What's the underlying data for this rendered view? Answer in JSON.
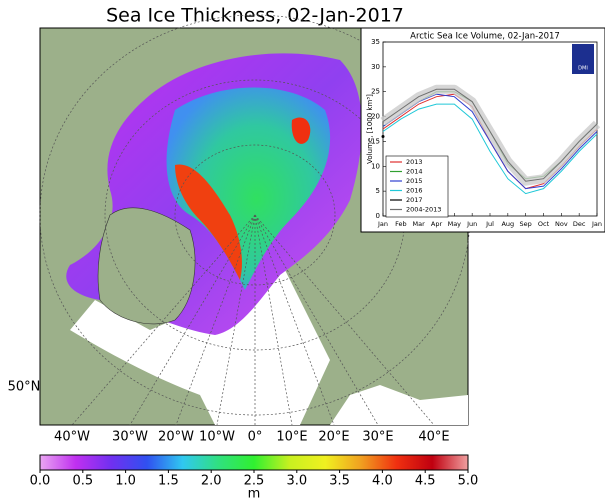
{
  "title": "Sea Ice Thickness, 02-Jan-2017",
  "map": {
    "lon_labels": [
      "40°W",
      "30°W",
      "20°W",
      "10°W",
      "0°",
      "10°E",
      "20°E",
      "30°E",
      "40°E"
    ],
    "lat_label": "50°N"
  },
  "colorbar": {
    "lim": [
      0,
      5
    ],
    "ticks": [
      {
        "value": 0,
        "label": "0.0"
      },
      {
        "value": 0.5,
        "label": "0.5"
      },
      {
        "value": 1,
        "label": "1.0"
      },
      {
        "value": 1.5,
        "label": "1.5"
      },
      {
        "value": 2,
        "label": "2.0"
      },
      {
        "value": 2.5,
        "label": "2.5"
      },
      {
        "value": 3,
        "label": "3.0"
      },
      {
        "value": 3.5,
        "label": "3.5"
      },
      {
        "value": 4,
        "label": "4.0"
      },
      {
        "value": 4.5,
        "label": "4.5"
      },
      {
        "value": 5,
        "label": "5.0"
      }
    ],
    "colors": [
      "#eaa6f2",
      "#c030f0",
      "#7030f0",
      "#3050f0",
      "#30c8f0",
      "#30e080",
      "#30f030",
      "#c8f020",
      "#f0f020",
      "#f0a020",
      "#f03010",
      "#c00010",
      "#f0a0a0"
    ],
    "unit": "m"
  },
  "chart_data": {
    "type": "line",
    "title": "Arctic Sea Ice Volume, 02-Jan-2017",
    "ylabel": "Volume, [1000 km³]",
    "logo_text": "DMI",
    "categories": [
      "Jan",
      "Feb",
      "Mar",
      "Apr",
      "May",
      "Jun",
      "Jul",
      "Aug",
      "Sep",
      "Oct",
      "Nov",
      "Dec",
      "Jan"
    ],
    "ylim": [
      0,
      35
    ],
    "yticks": [
      0,
      5,
      10,
      15,
      20,
      25,
      30,
      35
    ],
    "series": [
      {
        "name": "2013",
        "color": "#e03030",
        "values": [
          17.5,
          20,
          22.5,
          24,
          24.5,
          22,
          15,
          9,
          5.5,
          6.5,
          10,
          14,
          17.5
        ]
      },
      {
        "name": "2014",
        "color": "#30a030",
        "values": [
          18,
          20.5,
          23,
          25,
          25,
          23,
          17,
          10.5,
          7.5,
          8,
          11,
          15,
          18.5
        ]
      },
      {
        "name": "2015",
        "color": "#3040d0",
        "values": [
          18,
          20.5,
          23,
          24.5,
          24,
          21,
          15,
          9,
          5.5,
          6,
          9.5,
          13.5,
          17
        ]
      },
      {
        "name": "2016",
        "color": "#20c8d8",
        "values": [
          17,
          19.5,
          21.5,
          22.5,
          22.5,
          19.5,
          13,
          7.5,
          4.5,
          5.5,
          9,
          13,
          16.5
        ]
      },
      {
        "name": "2017",
        "color": "#000000",
        "values": [
          16,
          null,
          null,
          null,
          null,
          null,
          null,
          null,
          null,
          null,
          null,
          null,
          null
        ]
      },
      {
        "name": "2004-2013",
        "color": "#707070",
        "values": [
          19,
          21.5,
          24,
          25.5,
          25.5,
          23,
          17,
          11,
          7,
          7.5,
          11,
          15,
          18.5
        ]
      }
    ]
  }
}
